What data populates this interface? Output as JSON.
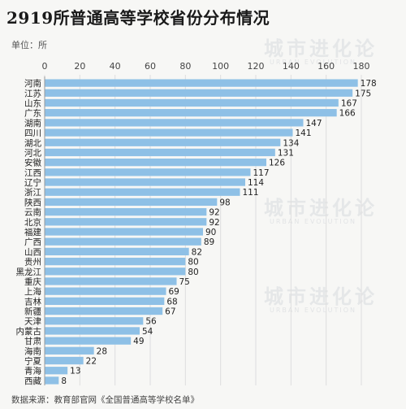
{
  "chart_data": {
    "type": "bar",
    "orientation": "horizontal",
    "title": "2919所普通高等学校省份分布情况",
    "unit_label": "单位：所",
    "source": "数据来源：教育部官网《全国普通高等学校名单》",
    "xlim": [
      0,
      180
    ],
    "xticks": [
      0,
      20,
      40,
      60,
      80,
      100,
      120,
      140,
      160,
      180
    ],
    "categories": [
      "河南",
      "江苏",
      "山东",
      "广东",
      "湖南",
      "四川",
      "湖北",
      "河北",
      "安徽",
      "江西",
      "辽宁",
      "浙江",
      "陕西",
      "云南",
      "北京",
      "福建",
      "广西",
      "山西",
      "贵州",
      "黑龙江",
      "重庆",
      "上海",
      "吉林",
      "新疆",
      "天津",
      "内蒙古",
      "甘肃",
      "海南",
      "宁夏",
      "青海",
      "西藏"
    ],
    "values": [
      178,
      175,
      167,
      166,
      147,
      141,
      134,
      131,
      126,
      117,
      114,
      111,
      98,
      92,
      92,
      90,
      89,
      82,
      80,
      80,
      75,
      69,
      68,
      67,
      56,
      54,
      49,
      28,
      22,
      13,
      8
    ],
    "bar_color": "#8ec0e6",
    "grid": true
  },
  "watermark": {
    "text": "城市进化论",
    "subtext": "URBAN EVOLUTION"
  }
}
